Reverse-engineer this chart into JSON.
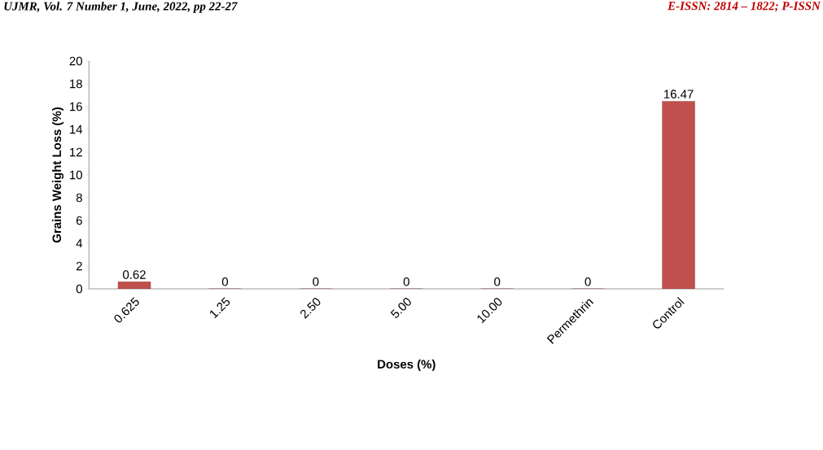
{
  "chart_data": {
    "type": "bar",
    "xlabel": "Doses (%)",
    "ylabel": "Grains Weight Loss (%)",
    "categories": [
      "0.625",
      "1.25",
      "2.50",
      "5.00",
      "10.00",
      "Permethrin",
      "Control"
    ],
    "values": [
      0.62,
      0,
      0,
      0,
      0,
      0,
      16.47
    ],
    "color": "#c0504d",
    "data_labels": true,
    "ylim": [
      0,
      20
    ],
    "yticks": [
      0,
      2,
      4,
      6,
      8,
      10,
      12,
      14,
      16,
      18,
      20
    ],
    "annotations": [
      "UJMR, Vol. 7 Number 1, June, 2022, pp 22-27",
      "E-ISSN: 2814 – 1822; P-ISSN"
    ]
  }
}
